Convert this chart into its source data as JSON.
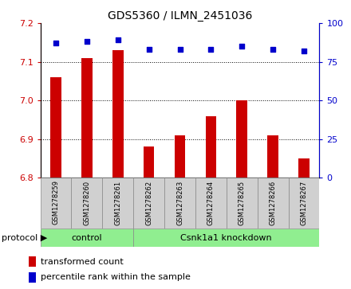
{
  "title": "GDS5360 / ILMN_2451036",
  "samples": [
    "GSM1278259",
    "GSM1278260",
    "GSM1278261",
    "GSM1278262",
    "GSM1278263",
    "GSM1278264",
    "GSM1278265",
    "GSM1278266",
    "GSM1278267"
  ],
  "bar_values": [
    7.06,
    7.11,
    7.13,
    6.88,
    6.91,
    6.96,
    7.0,
    6.91,
    6.85
  ],
  "percentile_values": [
    87,
    88,
    89,
    83,
    83,
    83,
    85,
    83,
    82
  ],
  "ylim_left": [
    6.8,
    7.2
  ],
  "ylim_right": [
    0,
    100
  ],
  "yticks_left": [
    6.8,
    6.9,
    7.0,
    7.1,
    7.2
  ],
  "yticks_right": [
    0,
    25,
    50,
    75,
    100
  ],
  "bar_color": "#cc0000",
  "dot_color": "#0000cc",
  "group_boundary": 2.5,
  "protocol_label": "protocol",
  "ctrl_label": "control",
  "kd_label": "Csnk1a1 knockdown",
  "legend_bar_label": "transformed count",
  "legend_dot_label": "percentile rank within the sample",
  "green_color": "#90ee90",
  "gray_color": "#d0d0d0",
  "title_fontsize": 10,
  "tick_fontsize": 8,
  "sample_fontsize": 6,
  "legend_fontsize": 8,
  "protocol_fontsize": 8,
  "group_label_fontsize": 8
}
